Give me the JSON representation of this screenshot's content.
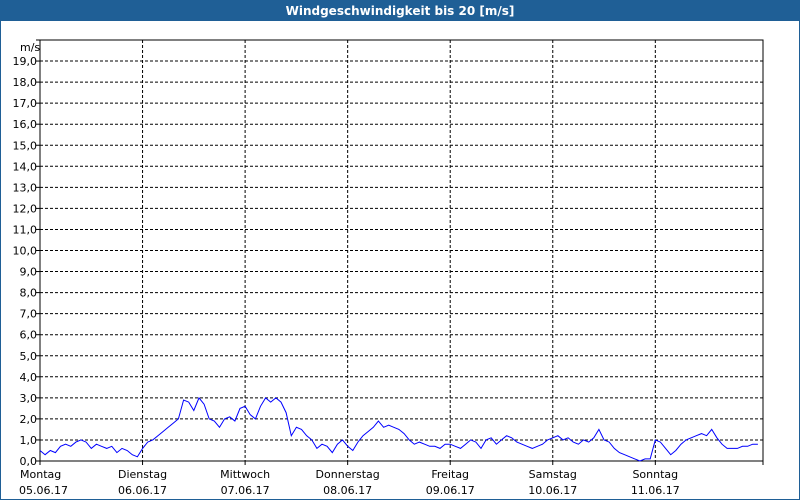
{
  "window": {
    "title": "Windgeschwindigkeit bis 20 [m/s]"
  },
  "colors": {
    "titlebar": "#1f5f96",
    "series": "#0000ff",
    "grid": "#000000"
  },
  "chart_data": {
    "type": "line",
    "title": "Windgeschwindigkeit bis 20 [m/s]",
    "ylabel": "m/s",
    "ylim": [
      0,
      20
    ],
    "xlim": [
      0,
      7.05
    ],
    "grid": true,
    "yticks": [
      "0,0",
      "1,0",
      "2,0",
      "3,0",
      "4,0",
      "5,0",
      "6,0",
      "7,0",
      "8,0",
      "9,0",
      "10,0",
      "11,0",
      "12,0",
      "13,0",
      "14,0",
      "15,0",
      "16,0",
      "17,0",
      "18,0",
      "19,0"
    ],
    "xticks": [
      {
        "day": "Montag",
        "date": "05.06.17"
      },
      {
        "day": "Dienstag",
        "date": "06.06.17"
      },
      {
        "day": "Mittwoch",
        "date": "07.06.17"
      },
      {
        "day": "Donnerstag",
        "date": "08.06.17"
      },
      {
        "day": "Freitag",
        "date": "09.06.17"
      },
      {
        "day": "Samstag",
        "date": "10.06.17"
      },
      {
        "day": "Sonntag",
        "date": "11.06.17"
      }
    ],
    "series": [
      {
        "x": [
          0.0,
          0.05,
          0.1,
          0.15,
          0.2,
          0.25,
          0.3,
          0.35,
          0.4,
          0.45,
          0.5,
          0.55,
          0.6,
          0.65,
          0.7,
          0.75,
          0.8,
          0.85,
          0.9,
          0.95,
          1.0,
          1.05,
          1.1,
          1.15,
          1.2,
          1.25,
          1.3,
          1.35,
          1.4,
          1.45,
          1.5,
          1.55,
          1.6,
          1.65,
          1.7,
          1.75,
          1.8,
          1.85,
          1.9,
          1.95,
          2.0,
          2.05,
          2.1,
          2.15,
          2.2,
          2.25,
          2.3,
          2.35,
          2.4,
          2.45,
          2.5,
          2.55,
          2.6,
          2.65,
          2.7,
          2.75,
          2.8,
          2.85,
          2.9,
          2.95,
          3.0,
          3.05,
          3.1,
          3.15,
          3.2,
          3.25,
          3.3,
          3.35,
          3.4,
          3.45,
          3.5,
          3.55,
          3.6,
          3.65,
          3.7,
          3.75,
          3.8,
          3.85,
          3.9,
          3.95,
          4.0,
          4.05,
          4.1,
          4.15,
          4.2,
          4.25,
          4.3,
          4.35,
          4.4,
          4.45,
          4.5,
          4.55,
          4.6,
          4.65,
          4.7,
          4.75,
          4.8,
          4.85,
          4.9,
          4.95,
          5.0,
          5.05,
          5.1,
          5.15,
          5.2,
          5.25,
          5.3,
          5.35,
          5.4,
          5.45,
          5.5,
          5.55,
          5.6,
          5.65,
          5.7,
          5.75,
          5.8,
          5.85,
          5.9,
          5.95,
          6.0,
          6.05,
          6.1,
          6.15,
          6.2,
          6.25,
          6.3,
          6.35,
          6.4,
          6.45,
          6.5,
          6.55,
          6.6,
          6.65,
          6.7,
          6.75,
          6.8,
          6.85,
          6.9,
          6.95,
          7.0
        ],
        "values": [
          0.5,
          0.3,
          0.5,
          0.4,
          0.7,
          0.8,
          0.7,
          0.9,
          1.0,
          0.9,
          0.6,
          0.8,
          0.7,
          0.6,
          0.7,
          0.4,
          0.6,
          0.5,
          0.3,
          0.2,
          0.6,
          0.9,
          1.0,
          1.2,
          1.4,
          1.6,
          1.8,
          2.0,
          2.9,
          2.8,
          2.4,
          3.0,
          2.7,
          2.0,
          1.9,
          1.6,
          2.0,
          2.1,
          1.9,
          2.5,
          2.6,
          2.2,
          2.0,
          2.6,
          3.0,
          2.8,
          3.0,
          2.8,
          2.3,
          1.2,
          1.6,
          1.5,
          1.2,
          1.0,
          0.6,
          0.8,
          0.7,
          0.4,
          0.8,
          1.0,
          0.7,
          0.5,
          0.9,
          1.2,
          1.4,
          1.6,
          1.9,
          1.6,
          1.7,
          1.6,
          1.5,
          1.3,
          1.0,
          0.8,
          0.9,
          0.8,
          0.7,
          0.7,
          0.6,
          0.8,
          0.8,
          0.7,
          0.6,
          0.8,
          1.0,
          0.9,
          0.6,
          1.0,
          1.1,
          0.8,
          1.0,
          1.2,
          1.1,
          0.9,
          0.8,
          0.7,
          0.6,
          0.7,
          0.8,
          1.0,
          1.1,
          1.2,
          1.0,
          1.1,
          0.9,
          0.8,
          1.0,
          0.9,
          1.1,
          1.5,
          1.0,
          0.9,
          0.6,
          0.4,
          0.3,
          0.2,
          0.1,
          0.0,
          0.1,
          0.1,
          1.0,
          0.9,
          0.6,
          0.3,
          0.5,
          0.8,
          1.0,
          1.1,
          1.2,
          1.3,
          1.2,
          1.5,
          1.1,
          0.8,
          0.6,
          0.6,
          0.6,
          0.7,
          0.7,
          0.8,
          0.8
        ]
      }
    ]
  }
}
